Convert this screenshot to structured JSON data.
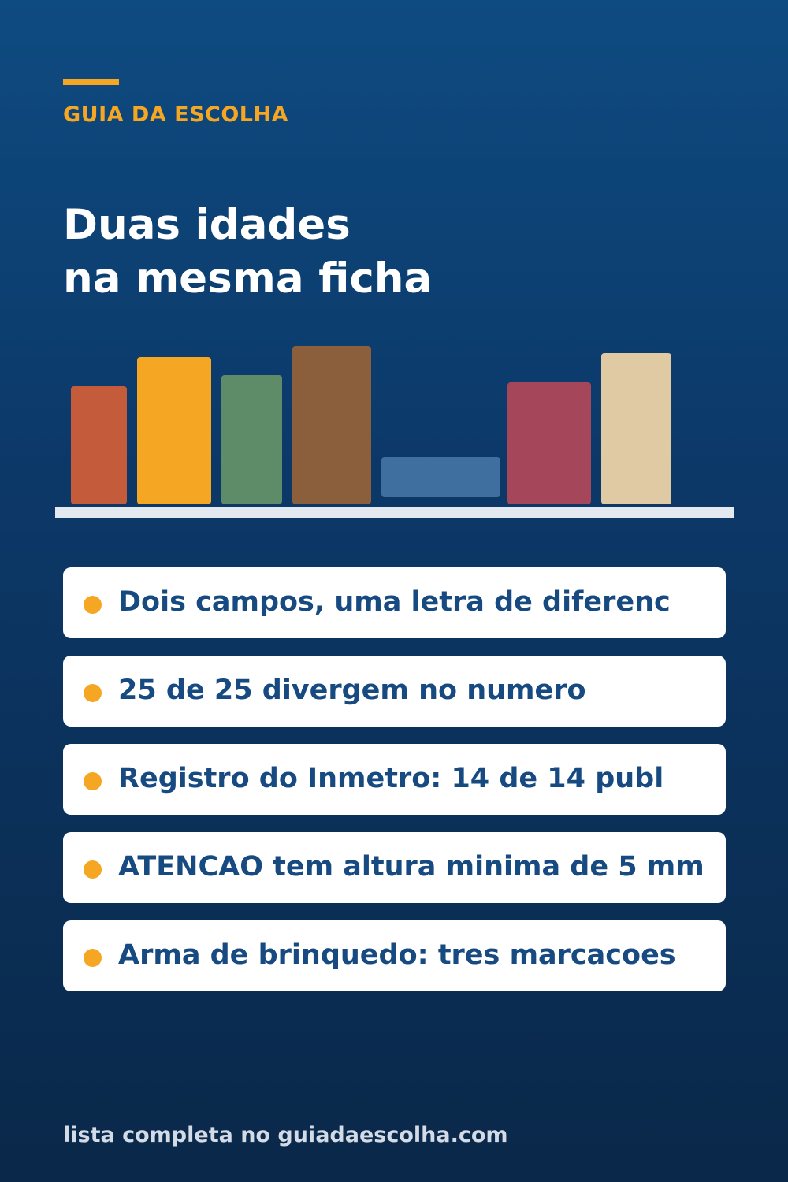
{
  "brand": {
    "label": "GUIA DA ESCOLHA",
    "accent_color": "#f5a623"
  },
  "headline": {
    "line1": "Duas idades",
    "line2": "na mesma ficha"
  },
  "books": [
    {
      "color": "#c45c3b",
      "orientation": "standing"
    },
    {
      "color": "#f5a623",
      "orientation": "standing"
    },
    {
      "color": "#5e8c69",
      "orientation": "standing"
    },
    {
      "color": "#8b5e3c",
      "orientation": "standing"
    },
    {
      "color": "#3f6f9e",
      "orientation": "lying"
    },
    {
      "color": "#a5465a",
      "orientation": "standing"
    },
    {
      "color": "#dfcaa4",
      "orientation": "standing"
    }
  ],
  "items": [
    {
      "text": "Dois campos, uma letra de diferenc"
    },
    {
      "text": "25 de 25 divergem no numero"
    },
    {
      "text": "Registro do Inmetro: 14 de 14 publ"
    },
    {
      "text": "ATENCAO tem altura minima de 5 mm"
    },
    {
      "text": "Arma de brinquedo: tres marcacoes"
    }
  ],
  "footer": {
    "text": "lista completa no guiadaescolha.com"
  }
}
